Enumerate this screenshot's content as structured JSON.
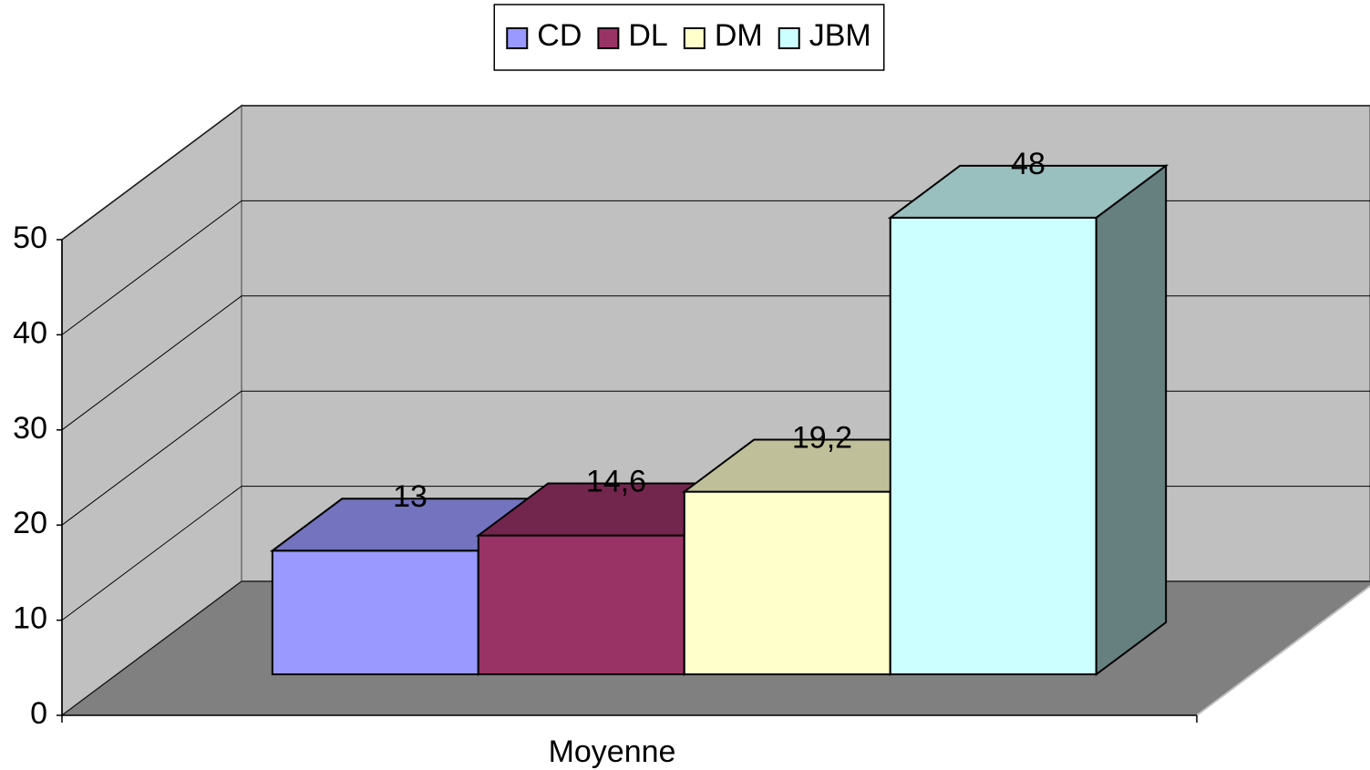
{
  "chart_data": {
    "type": "bar3d",
    "categories": [
      "Moyenne"
    ],
    "series": [
      {
        "name": "CD",
        "color": "#9999ff",
        "values": [
          13
        ],
        "value_labels": [
          "13"
        ]
      },
      {
        "name": "DL",
        "color": "#993366",
        "values": [
          14.6
        ],
        "value_labels": [
          "14,6"
        ]
      },
      {
        "name": "DM",
        "color": "#ffffcc",
        "values": [
          19.2
        ],
        "value_labels": [
          "19,2"
        ]
      },
      {
        "name": "JBM",
        "color": "#ccffff",
        "values": [
          48
        ],
        "value_labels": [
          "48"
        ]
      }
    ],
    "ylim": [
      0,
      50
    ],
    "yticks": [
      0,
      10,
      20,
      30,
      40,
      50
    ],
    "grid": true,
    "legend": "top"
  }
}
